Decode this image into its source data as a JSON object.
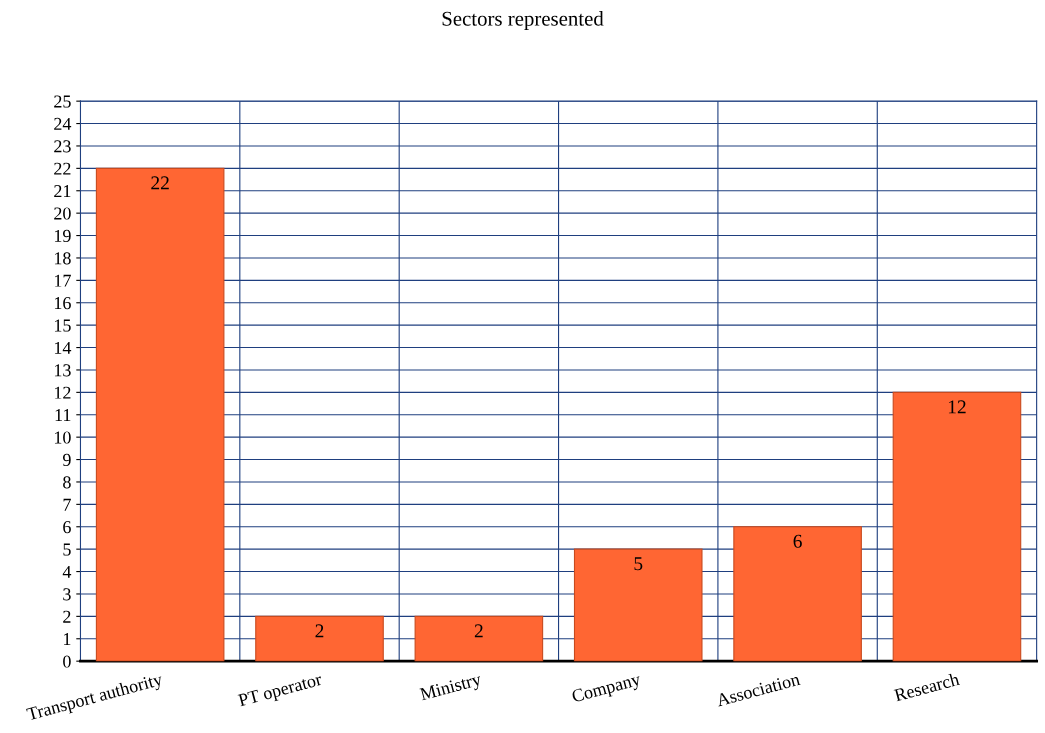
{
  "chart_data": {
    "type": "bar",
    "title": "Sectors represented",
    "categories": [
      "Transport authority",
      "PT operator",
      "Ministry",
      "Company",
      "Association",
      "Research"
    ],
    "values": [
      22,
      2,
      2,
      5,
      6,
      12
    ],
    "color": "#ff6633",
    "ylim": [
      0,
      25
    ],
    "yticks": [
      0,
      1,
      2,
      3,
      4,
      5,
      6,
      7,
      8,
      9,
      10,
      11,
      12,
      13,
      14,
      15,
      16,
      17,
      18,
      19,
      20,
      21,
      22,
      23,
      24,
      25
    ],
    "grid": true,
    "data_labels": true
  }
}
